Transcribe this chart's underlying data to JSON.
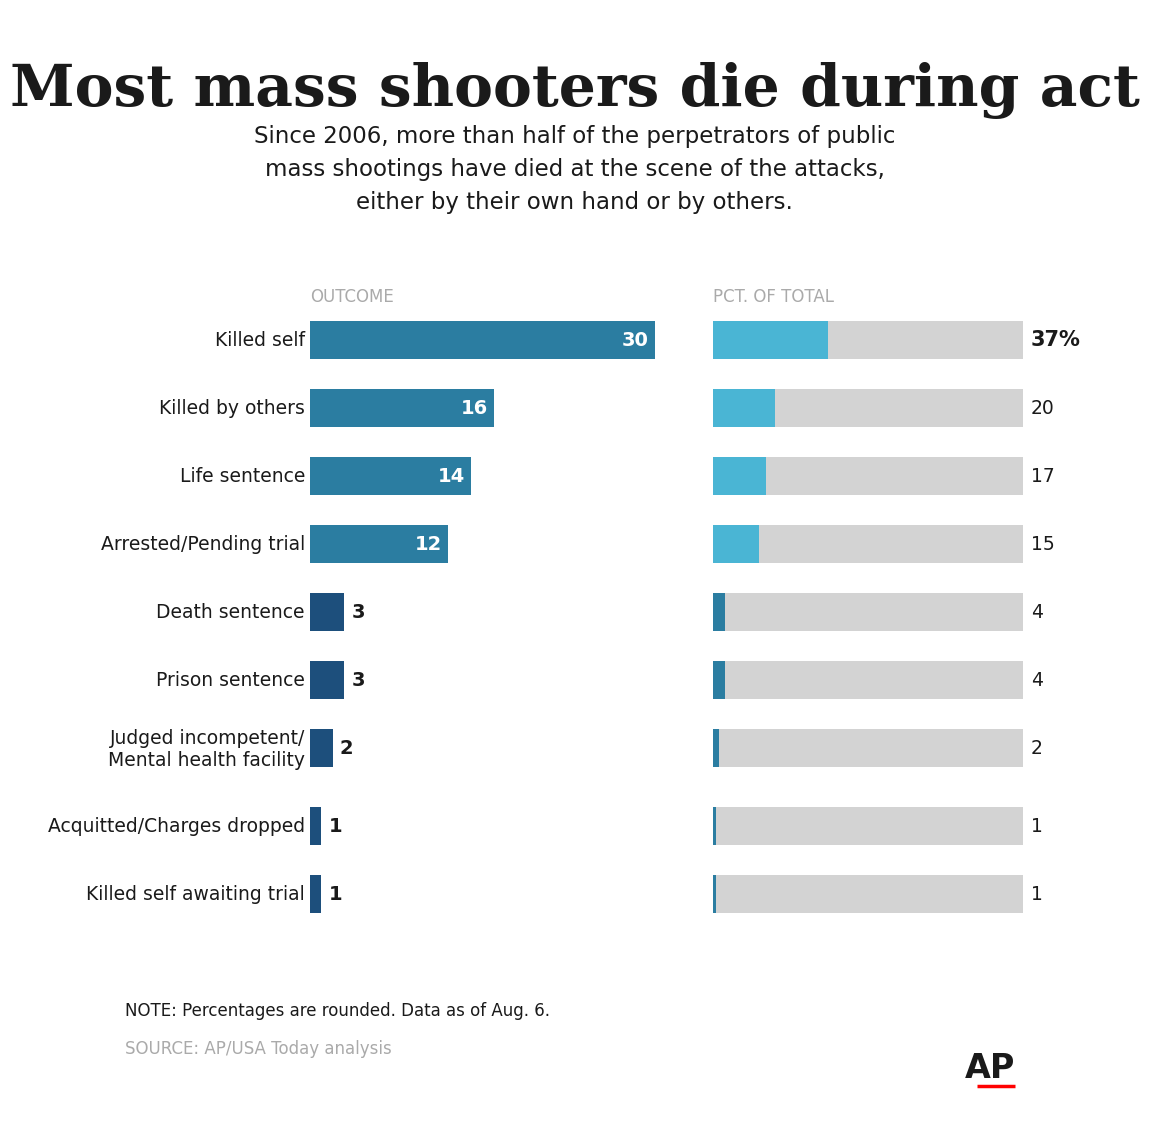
{
  "title": "Most mass shooters die during act",
  "subtitle": "Since 2006, more than half of the perpetrators of public\nmass shootings have died at the scene of the attacks,\neither by their own hand or by others.",
  "col1_header": "OUTCOME",
  "col2_header": "PCT. OF TOTAL",
  "categories": [
    "Killed self",
    "Killed by others",
    "Life sentence",
    "Arrested/Pending trial",
    "Death sentence",
    "Prison sentence",
    "Judged incompetent/\nMental health facility",
    "Acquitted/Charges dropped",
    "Killed self awaiting trial"
  ],
  "counts": [
    30,
    16,
    14,
    12,
    3,
    3,
    2,
    1,
    1
  ],
  "pcts": [
    37,
    20,
    17,
    15,
    4,
    4,
    2,
    1,
    1
  ],
  "pct_labels": [
    "37%",
    "20",
    "17",
    "15",
    "4",
    "4",
    "2",
    "1",
    "1"
  ],
  "bar_color_large": "#2b7da1",
  "bar_color_small": "#1d4f7c",
  "pct_bar_color_large": "#4ab5d4",
  "pct_bar_color_small": "#2b7da1",
  "bg_gray": "#d3d3d3",
  "text_color": "#1a1a1a",
  "header_color": "#aaaaaa",
  "note_text": "NOTE: Percentages are rounded. Data as of Aug. 6.",
  "source_text": "SOURCE: AP/USA Today analysis",
  "background_color": "#ffffff"
}
